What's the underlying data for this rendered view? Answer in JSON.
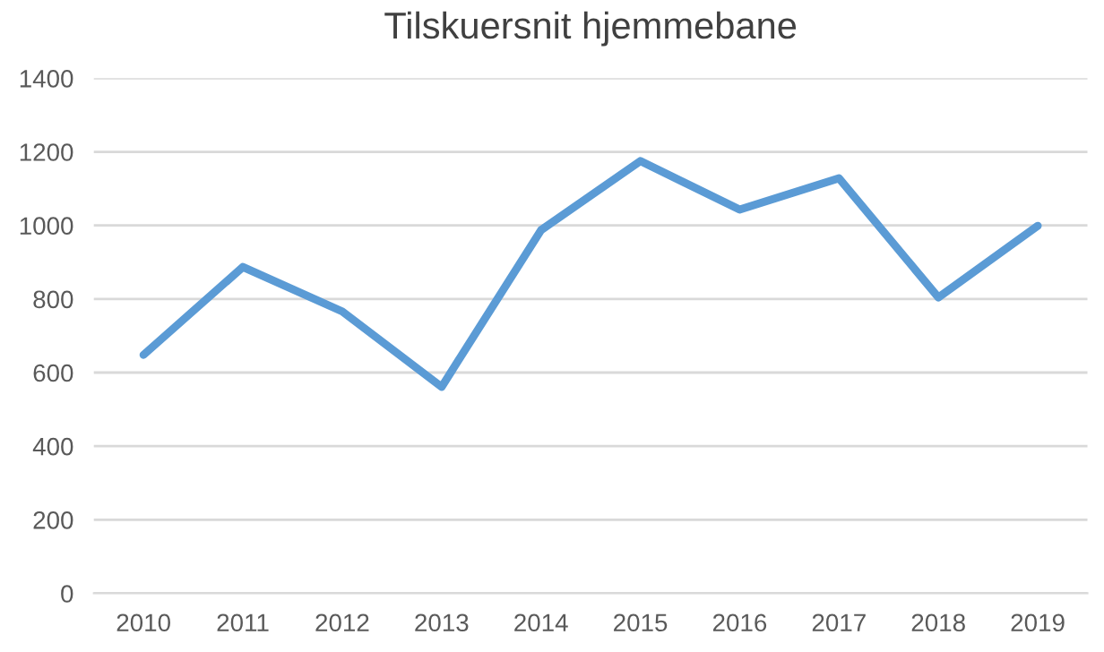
{
  "chart_data": {
    "type": "line",
    "title": "Tilskuersnit hjemmebane",
    "categories": [
      "2010",
      "2011",
      "2012",
      "2013",
      "2014",
      "2015",
      "2016",
      "2017",
      "2018",
      "2019"
    ],
    "series": [
      {
        "color": "#5b9bd5",
        "values": [
          648,
          887,
          766,
          561,
          987,
          1175,
          1043,
          1128,
          804,
          999
        ]
      }
    ],
    "ylim": [
      0,
      1400
    ],
    "yticks": [
      0,
      200,
      400,
      600,
      800,
      1000,
      1200,
      1400
    ],
    "grid": "y",
    "marker": "none",
    "line_style": "solid"
  }
}
